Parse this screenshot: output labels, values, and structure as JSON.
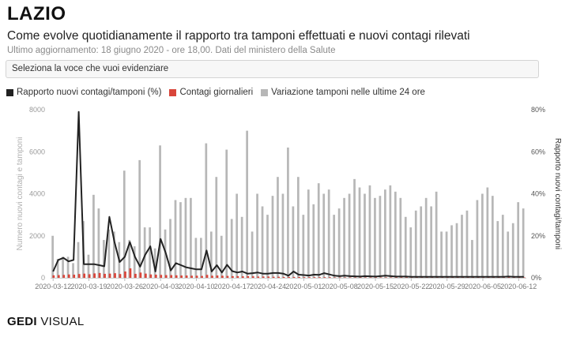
{
  "header": {
    "title": "LAZIO",
    "subtitle": "Come evolve quotidianamente il rapporto tra tamponi effettuati e nuovi contagi rilevati",
    "source": "Ultimo aggiornamento: 18 giugno 2020 - ore 18,00. Dati del ministero della Salute"
  },
  "selector": {
    "label": "Seleziona la voce che vuoi evidenziare"
  },
  "legend": [
    {
      "label": "Rapporto nuovi contagi/tamponi (%)",
      "color": "#222222"
    },
    {
      "label": "Contagi giornalieri",
      "color": "#d9453a"
    },
    {
      "label": "Variazione tamponi nelle ultime 24 ore",
      "color": "#b7b7b7"
    }
  ],
  "footer": {
    "brand_bold": "GEDI",
    "brand_light": " VISUAL"
  },
  "chart_data": {
    "type": "bar",
    "ylabel": "Numero nuovi contagi e tamponi",
    "y2label": "Rapporto nuovi contagi/tamponi",
    "ylim": [
      0,
      8000
    ],
    "y2lim": [
      0,
      80
    ],
    "yticks": [
      "0",
      "2000",
      "4000",
      "6000",
      "8000"
    ],
    "y2ticks": [
      "0%",
      "20%",
      "40%",
      "60%",
      "80%"
    ],
    "xticks": [
      "2020-03-12",
      "2020-03-19",
      "2020-03-26",
      "2020-04-03",
      "2020-04-10",
      "2020-04-17",
      "2020-04-24",
      "2020-05-01",
      "2020-05-08",
      "2020-05-15",
      "2020-05-22",
      "2020-05-29",
      "2020-06-05",
      "2020-06-12"
    ],
    "series": [
      {
        "name": "Variazione tamponi nelle ultime 24 ore",
        "values": [
          2000,
          900,
          1000,
          1000,
          700,
          1700,
          2700,
          1100,
          3950,
          3300,
          1800,
          2300,
          2200,
          1700,
          5100,
          1800,
          1500,
          5600,
          2400,
          2400,
          1400,
          6300,
          2300,
          2800,
          3700,
          3600,
          3800,
          3800,
          1900,
          1900,
          6400,
          2200,
          4800,
          2000,
          6100,
          2800,
          4000,
          2900,
          7000,
          2200,
          4000,
          3400,
          3000,
          3900,
          4800,
          4000,
          6200,
          3400,
          4800,
          3000,
          4200,
          3500,
          4500,
          4000,
          4200,
          3000,
          3300,
          3800,
          4000,
          4700,
          4300,
          4000,
          4400,
          3800,
          3900,
          4200,
          4400,
          4100,
          3800,
          2900,
          2400,
          3200,
          3400,
          3800,
          3400,
          4100,
          2200,
          2200,
          2500,
          2600,
          3000,
          3200,
          1800,
          3700,
          4000,
          4300,
          3900,
          2700,
          3000,
          2200,
          2600,
          3600,
          3300
        ]
      },
      {
        "name": "Contagi giornalieri",
        "values": [
          120,
          130,
          140,
          160,
          150,
          180,
          200,
          170,
          210,
          230,
          190,
          200,
          220,
          180,
          300,
          450,
          190,
          250,
          200,
          160,
          150,
          140,
          130,
          130,
          120,
          110,
          110,
          100,
          100,
          90,
          140,
          100,
          110,
          100,
          90,
          80,
          80,
          70,
          80,
          70,
          60,
          60,
          60,
          50,
          50,
          40,
          40,
          40,
          40,
          30,
          30,
          30,
          30,
          30,
          30,
          20,
          20,
          20,
          20,
          20,
          20,
          20,
          20,
          20,
          20,
          20,
          20,
          20,
          20,
          20,
          20,
          20,
          20,
          20,
          20,
          20,
          20,
          20,
          20,
          20,
          20,
          20,
          20,
          20,
          20,
          20,
          20,
          20,
          20,
          20,
          20,
          20,
          20
        ]
      },
      {
        "name": "Rapporto nuovi contagi/tamponi (%)",
        "values": [
          3,
          8.5,
          9.5,
          7.8,
          8.5,
          79,
          6.5,
          6.5,
          6.5,
          6,
          5.5,
          29,
          17,
          7.5,
          10,
          17,
          10,
          5.3,
          11,
          15,
          3,
          18.5,
          12,
          3.5,
          7,
          6,
          5,
          4.5,
          4,
          4,
          13,
          3,
          6,
          2.5,
          6.2,
          3.2,
          2.5,
          3,
          2,
          2.2,
          2.5,
          2,
          2,
          2.3,
          2.3,
          2,
          1,
          3,
          1.5,
          1.3,
          1.1,
          1.5,
          1.4,
          2.2,
          1.6,
          1,
          0.8,
          1,
          0.8,
          0.7,
          0.6,
          0.8,
          0.7,
          0.6,
          0.8,
          1,
          0.8,
          0.6,
          0.6,
          0.6,
          0.5,
          0.5,
          0.5,
          0.5,
          0.5,
          0.5,
          0.5,
          0.5,
          0.5,
          0.5,
          0.5,
          0.5,
          0.5,
          0.5,
          0.5,
          0.5,
          0.5,
          0.5,
          0.5,
          0.6,
          0.5,
          0.5,
          0.5
        ]
      }
    ]
  }
}
